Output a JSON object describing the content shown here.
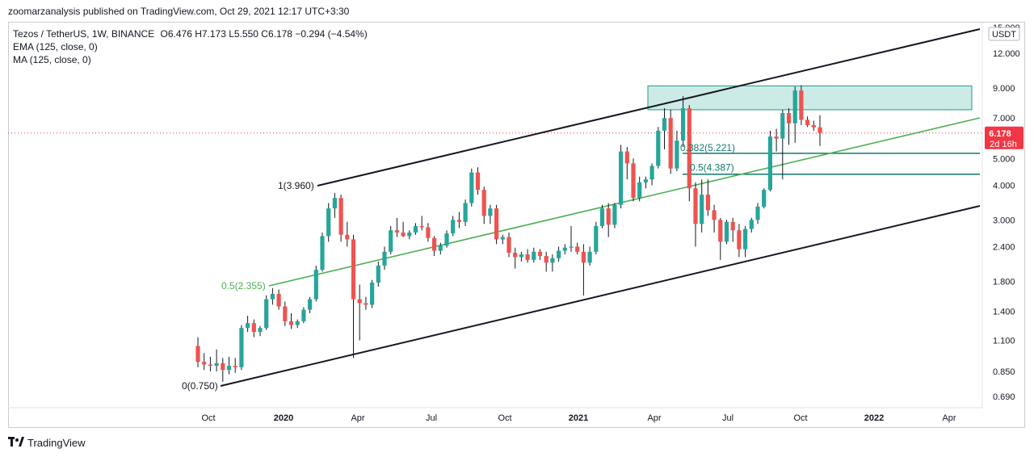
{
  "publisher": {
    "text": "zoomarzanalysis published on TradingView.com, Oct 29, 2021 12:17 UTC+3:30"
  },
  "legend": {
    "symbol": "Tezos / TetherUS, 1W, BINANCE",
    "ohlc": "O6.476  H7.173  L5.550  C6.178  −0.294 (−4.54%)",
    "ema": "EMA (125, close, 0)",
    "ma": "MA (125, close, 0)"
  },
  "footer": {
    "brand": "TradingView",
    "logo_icon": "tradingview-logo-icon"
  },
  "colors": {
    "bull": "#26a69a",
    "bear": "#ef5350",
    "trendline": "#131722",
    "midline": "#4caf50",
    "fib": "#0f7a6c",
    "zone_fill": "#cdebe6",
    "zone_stroke": "#1c9c8a",
    "price_bg": "#f23645"
  },
  "chart_data": {
    "type": "candlestick",
    "scale": "log",
    "currency_label": "USDT",
    "ylim": [
      0.6,
      15.5
    ],
    "y_ticks": [
      "15.000",
      "12.000",
      "9.000",
      "7.000",
      "5.000",
      "4.000",
      "3.000",
      "2.400",
      "1.800",
      "1.400",
      "1.100",
      "0.850",
      "0.690"
    ],
    "x_ticks": [
      {
        "label": "Oct",
        "year": false
      },
      {
        "label": "2020",
        "year": true
      },
      {
        "label": "Apr",
        "year": false
      },
      {
        "label": "Jul",
        "year": false
      },
      {
        "label": "Oct",
        "year": false
      },
      {
        "label": "2021",
        "year": true
      },
      {
        "label": "Apr",
        "year": false
      },
      {
        "label": "Jul",
        "year": false
      },
      {
        "label": "Oct",
        "year": false
      },
      {
        "label": "2022",
        "year": true
      },
      {
        "label": "Apr",
        "year": false
      }
    ],
    "last_price": {
      "value": "6.178",
      "countdown": "2d 16h"
    },
    "annotations": [
      {
        "text": "0(0.750)",
        "price": 0.75
      },
      {
        "text": "1(3.960)",
        "price": 3.96
      },
      {
        "text": "0.5(2.355)",
        "price": 2.355
      },
      {
        "text": "0.382(5.221)",
        "price": 5.221
      },
      {
        "text": "0.5(4.387)",
        "price": 4.387
      }
    ],
    "supply_zone": {
      "low": 7.5,
      "high": 9.15
    },
    "candles": [
      [
        1.05,
        1.13,
        0.88,
        0.92
      ],
      [
        0.92,
        0.99,
        0.86,
        0.9
      ],
      [
        0.9,
        0.96,
        0.85,
        0.89
      ],
      [
        0.89,
        1.02,
        0.85,
        0.91
      ],
      [
        0.91,
        0.95,
        0.78,
        0.86
      ],
      [
        0.86,
        0.96,
        0.83,
        0.89
      ],
      [
        0.89,
        0.95,
        0.84,
        0.88
      ],
      [
        0.88,
        1.25,
        0.86,
        1.22
      ],
      [
        1.22,
        1.35,
        1.18,
        1.27
      ],
      [
        1.27,
        1.31,
        1.13,
        1.18
      ],
      [
        1.18,
        1.24,
        1.14,
        1.22
      ],
      [
        1.22,
        1.6,
        1.2,
        1.55
      ],
      [
        1.55,
        1.7,
        1.48,
        1.62
      ],
      [
        1.62,
        1.68,
        1.42,
        1.46
      ],
      [
        1.46,
        1.52,
        1.24,
        1.29
      ],
      [
        1.29,
        1.38,
        1.21,
        1.25
      ],
      [
        1.25,
        1.31,
        1.22,
        1.29
      ],
      [
        1.29,
        1.45,
        1.27,
        1.42
      ],
      [
        1.42,
        1.58,
        1.38,
        1.55
      ],
      [
        1.55,
        2.05,
        1.52,
        1.98
      ],
      [
        1.98,
        2.7,
        1.95,
        2.62
      ],
      [
        2.62,
        3.45,
        2.5,
        3.3
      ],
      [
        3.3,
        3.75,
        3.05,
        3.6
      ],
      [
        3.6,
        3.7,
        2.5,
        2.65
      ],
      [
        2.65,
        2.95,
        2.4,
        2.55
      ],
      [
        2.55,
        2.65,
        0.95,
        1.55
      ],
      [
        1.55,
        1.75,
        1.1,
        1.5
      ],
      [
        1.5,
        1.58,
        1.42,
        1.48
      ],
      [
        1.48,
        1.82,
        1.44,
        1.78
      ],
      [
        1.78,
        2.12,
        1.72,
        2.05
      ],
      [
        2.05,
        2.4,
        1.98,
        2.3
      ],
      [
        2.3,
        2.85,
        2.25,
        2.75
      ],
      [
        2.75,
        3.05,
        2.6,
        2.7
      ],
      [
        2.7,
        2.95,
        2.6,
        2.62
      ],
      [
        2.62,
        2.75,
        2.55,
        2.7
      ],
      [
        2.7,
        2.92,
        2.65,
        2.85
      ],
      [
        2.85,
        3.1,
        2.75,
        2.82
      ],
      [
        2.82,
        2.92,
        2.5,
        2.58
      ],
      [
        2.58,
        2.62,
        2.22,
        2.32
      ],
      [
        2.32,
        2.48,
        2.25,
        2.42
      ],
      [
        2.42,
        2.75,
        2.38,
        2.68
      ],
      [
        2.68,
        3.1,
        2.62,
        3.0
      ],
      [
        3.0,
        3.2,
        2.8,
        2.95
      ],
      [
        2.95,
        3.55,
        2.85,
        3.45
      ],
      [
        3.45,
        4.6,
        3.35,
        4.45
      ],
      [
        4.45,
        4.65,
        3.7,
        3.85
      ],
      [
        3.85,
        3.95,
        2.9,
        3.1
      ],
      [
        3.1,
        3.4,
        2.9,
        3.3
      ],
      [
        3.3,
        3.4,
        2.45,
        2.55
      ],
      [
        2.55,
        2.65,
        2.45,
        2.6
      ],
      [
        2.6,
        2.7,
        2.2,
        2.28
      ],
      [
        2.28,
        2.38,
        2.0,
        2.2
      ],
      [
        2.2,
        2.3,
        2.12,
        2.25
      ],
      [
        2.25,
        2.35,
        2.1,
        2.15
      ],
      [
        2.15,
        2.38,
        2.1,
        2.3
      ],
      [
        2.3,
        2.35,
        2.15,
        2.22
      ],
      [
        2.22,
        2.3,
        1.95,
        2.1
      ],
      [
        2.1,
        2.25,
        1.95,
        2.18
      ],
      [
        2.18,
        2.4,
        2.12,
        2.32
      ],
      [
        2.32,
        2.45,
        2.25,
        2.38
      ],
      [
        2.38,
        2.85,
        2.3,
        2.4
      ],
      [
        2.4,
        2.48,
        2.25,
        2.3
      ],
      [
        2.3,
        2.45,
        1.6,
        2.1
      ],
      [
        2.1,
        2.4,
        2.05,
        2.3
      ],
      [
        2.3,
        2.95,
        2.25,
        2.85
      ],
      [
        2.85,
        3.4,
        2.8,
        3.3
      ],
      [
        3.3,
        3.45,
        2.6,
        2.88
      ],
      [
        2.88,
        3.45,
        2.8,
        3.4
      ],
      [
        3.4,
        5.6,
        3.3,
        5.3
      ],
      [
        5.3,
        5.5,
        4.2,
        4.8
      ],
      [
        4.8,
        5.0,
        3.5,
        3.6
      ],
      [
        3.6,
        4.3,
        3.5,
        4.1
      ],
      [
        4.1,
        4.3,
        3.9,
        4.2
      ],
      [
        4.2,
        4.8,
        4.0,
        4.7
      ],
      [
        4.7,
        6.5,
        4.6,
        6.3
      ],
      [
        6.3,
        7.6,
        5.4,
        7.0
      ],
      [
        7.0,
        7.5,
        4.4,
        4.6
      ],
      [
        4.6,
        6.3,
        4.5,
        5.8
      ],
      [
        5.8,
        8.4,
        5.5,
        7.6
      ],
      [
        7.6,
        7.8,
        3.5,
        3.9
      ],
      [
        3.9,
        4.1,
        2.4,
        2.9
      ],
      [
        2.9,
        4.2,
        2.7,
        3.7
      ],
      [
        3.7,
        4.2,
        3.1,
        3.25
      ],
      [
        3.25,
        3.4,
        2.7,
        3.0
      ],
      [
        3.0,
        3.05,
        2.15,
        2.5
      ],
      [
        2.5,
        3.0,
        2.45,
        2.95
      ],
      [
        2.95,
        3.05,
        2.5,
        2.75
      ],
      [
        2.75,
        2.9,
        2.2,
        2.35
      ],
      [
        2.35,
        2.85,
        2.2,
        2.78
      ],
      [
        2.78,
        3.05,
        2.7,
        3.0
      ],
      [
        3.0,
        3.45,
        2.9,
        3.35
      ],
      [
        3.35,
        3.9,
        3.3,
        3.85
      ],
      [
        3.85,
        6.3,
        3.8,
        6.0
      ],
      [
        6.0,
        6.4,
        5.3,
        5.9
      ],
      [
        5.9,
        7.5,
        4.2,
        7.3
      ],
      [
        7.3,
        7.6,
        5.6,
        6.7
      ],
      [
        6.7,
        9.1,
        5.7,
        8.8
      ],
      [
        8.8,
        9.2,
        6.6,
        6.9
      ],
      [
        6.9,
        7.1,
        6.5,
        6.6
      ],
      [
        6.6,
        6.85,
        6.3,
        6.48
      ],
      [
        6.48,
        7.17,
        5.55,
        6.18
      ]
    ]
  }
}
